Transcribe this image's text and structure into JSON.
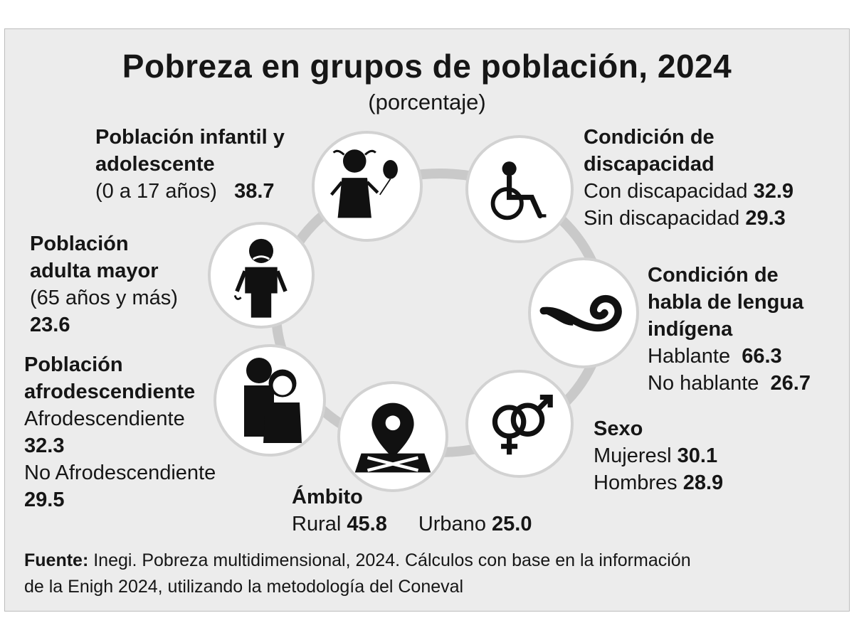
{
  "title": "Pobreza en grupos de población, 2024",
  "subtitle": "(porcentaje)",
  "groups": {
    "infantil": {
      "title_1": "Población infantil y",
      "title_2": "adolescente",
      "range": "(0 a 17 años)",
      "value": "38.7",
      "icon": "child-with-balloon-icon"
    },
    "discapacidad": {
      "title_1": "Condición de",
      "title_2": "discapacidad",
      "con_label": "Con discapacidad",
      "con_value": "32.9",
      "sin_label": "Sin discapacidad",
      "sin_value": "29.3",
      "icon": "wheelchair-icon"
    },
    "adulta_mayor": {
      "title_1": "Población",
      "title_2": "adulta mayor",
      "range": "(65 años y más)",
      "value": "23.6",
      "icon": "elderly-man-icon"
    },
    "lengua": {
      "title_1": "Condición de",
      "title_2": "habla de lengua",
      "title_3": "indígena",
      "hablante_label": "Hablante",
      "hablante_value": "66.3",
      "no_hablante_label": "No hablante",
      "no_hablante_value": "26.7",
      "icon": "speech-scroll-icon"
    },
    "afro": {
      "title_1": "Población",
      "title_2": "afrodescendiente",
      "afro_label": "Afrodescendiente",
      "afro_value": "32.3",
      "no_afro_label": "No Afrodescendiente",
      "no_afro_value": "29.5",
      "icon": "afrodescendant-couple-icon"
    },
    "ambito": {
      "title": "Ámbito",
      "rural_label": "Rural",
      "rural_value": "45.8",
      "urbano_label": "Urbano",
      "urbano_value": "25.0",
      "icon": "map-pin-icon"
    },
    "sexo": {
      "title": "Sexo",
      "mujeres_label": "Mujeresl",
      "mujeres_value": "30.1",
      "hombres_label": "Hombres",
      "hombres_value": "28.9",
      "icon": "gender-symbols-icon"
    }
  },
  "source": {
    "label": "Fuente:",
    "line_1": "Inegi. Pobreza multidimensional, 2024. Cálculos con base en la información",
    "line_2": "de la Enigh 2024, utilizando la metodología del Coneval"
  },
  "colors": {
    "panel_bg": "#ececec",
    "ring": "#c9c9c9",
    "icon": "#111111",
    "text": "#161616"
  }
}
